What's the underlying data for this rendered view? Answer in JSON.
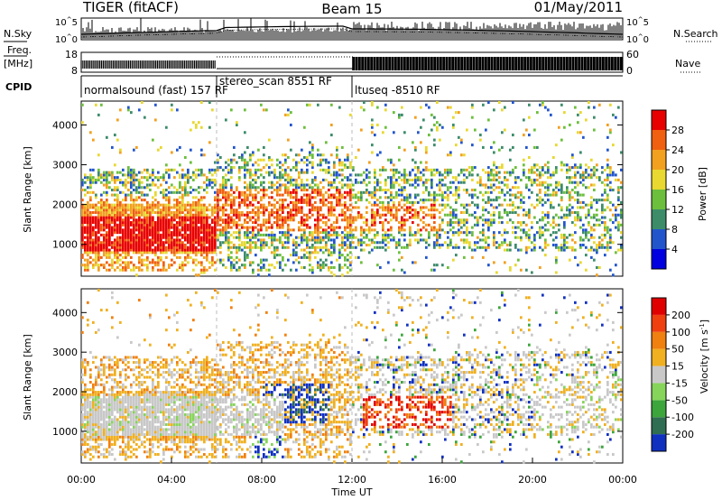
{
  "header": {
    "title": "TIGER (fitACF)",
    "beam": "Beam 15",
    "date": "01/May/2011"
  },
  "labels": {
    "nsky": "N.Sky",
    "nsearch": "N.Search",
    "freq": "Freq.",
    "freq_unit": "[MHz]",
    "nave": "Nave",
    "cpid": "CPID",
    "sky_max": "10^5",
    "sky_min": "10^0",
    "search_max": "10^5",
    "search_min": "10^0",
    "freq_max": "18",
    "freq_min": "8",
    "nave_max": "60",
    "nave_min": "0"
  },
  "cpid_segments": [
    {
      "label": "normalsound (fast) 157 RF",
      "start": 0,
      "end": 6
    },
    {
      "label": "stereo_scan 8551 RF",
      "start": 6,
      "end": 12
    },
    {
      "label": "ltuseq -8510 RF",
      "start": 12,
      "end": 24
    }
  ],
  "chart_data": [
    {
      "type": "heatmap",
      "xlabel": "",
      "ylabel": "Slant Range [km]",
      "yticks": [
        "1000",
        "2000",
        "3000",
        "4000"
      ],
      "ylim": [
        200,
        4600
      ],
      "xlim": [
        0,
        24
      ],
      "colorbar_label": "Power [dB]",
      "colorbar_ticks": [
        "4",
        "8",
        "12",
        "16",
        "20",
        "24",
        "28"
      ],
      "colorbar_colors": [
        "#0000e0",
        "#2255cc",
        "#3c8c6a",
        "#6cbf3c",
        "#e8d830",
        "#f2a020",
        "#f06010",
        "#e80000"
      ]
    },
    {
      "type": "heatmap",
      "xlabel": "Time UT",
      "ylabel": "Slant Range [km]",
      "yticks": [
        "1000",
        "2000",
        "3000",
        "4000"
      ],
      "ylim": [
        200,
        4600
      ],
      "xlim": [
        0,
        24
      ],
      "xticks": [
        "00:00",
        "04:00",
        "08:00",
        "12:00",
        "16:00",
        "20:00",
        "00:00"
      ],
      "colorbar_label": "Velocity [m s^-1]",
      "colorbar_ticks": [
        "200",
        "100",
        "50",
        "15",
        "-15",
        "-50",
        "-100",
        "-200"
      ],
      "colorbar_colors": [
        "#1030c0",
        "#2f6e52",
        "#3ca53c",
        "#86d45a",
        "#c8c8c8",
        "#f0b020",
        "#f08010",
        "#f04010",
        "#e00000"
      ]
    }
  ]
}
